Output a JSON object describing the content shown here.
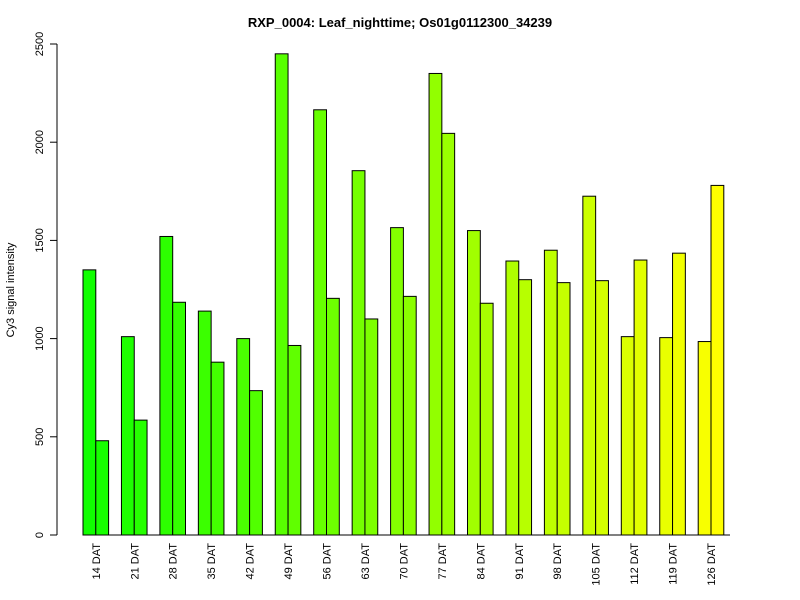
{
  "chart_data": {
    "type": "bar",
    "title": "RXP_0004: Leaf_nighttime; Os01g0112300_34239",
    "xlabel": "",
    "ylabel": "Cy3 signal intensity",
    "ylim": [
      0,
      2500
    ],
    "yticks": [
      0,
      500,
      1000,
      1500,
      2000,
      2500
    ],
    "grid": false,
    "legend": "none",
    "categories": [
      "14 DAT",
      "21 DAT",
      "28 DAT",
      "35 DAT",
      "42 DAT",
      "49 DAT",
      "56 DAT",
      "63 DAT",
      "70 DAT",
      "77 DAT",
      "84 DAT",
      "91 DAT",
      "98 DAT",
      "105 DAT",
      "112 DAT",
      "119 DAT",
      "126 DAT"
    ],
    "series": [
      {
        "values": [
          1350,
          1010,
          1520,
          1140,
          1000,
          2450,
          2165,
          1855,
          1565,
          2350,
          1550,
          1395,
          1450,
          1725,
          1010,
          1005,
          985
        ]
      },
      {
        "values": [
          480,
          585,
          1185,
          880,
          735,
          965,
          1205,
          1100,
          1215,
          2045,
          1180,
          1300,
          1285,
          1295,
          1400,
          1435,
          1780
        ]
      }
    ],
    "colors": [
      "#00ff00",
      "#0cff00",
      "#19ff00",
      "#26ff00",
      "#33ff00",
      "#40ff00",
      "#4cff00",
      "#59ff00",
      "#66ff00",
      "#73ff00",
      "#80ff00",
      "#8cff00",
      "#99ff00",
      "#a6ff00",
      "#b3ff00",
      "#bfff00",
      "#ccff00",
      "#d9ff00",
      "#e6ff00",
      "#f2ff00",
      "#ffff00"
    ]
  }
}
